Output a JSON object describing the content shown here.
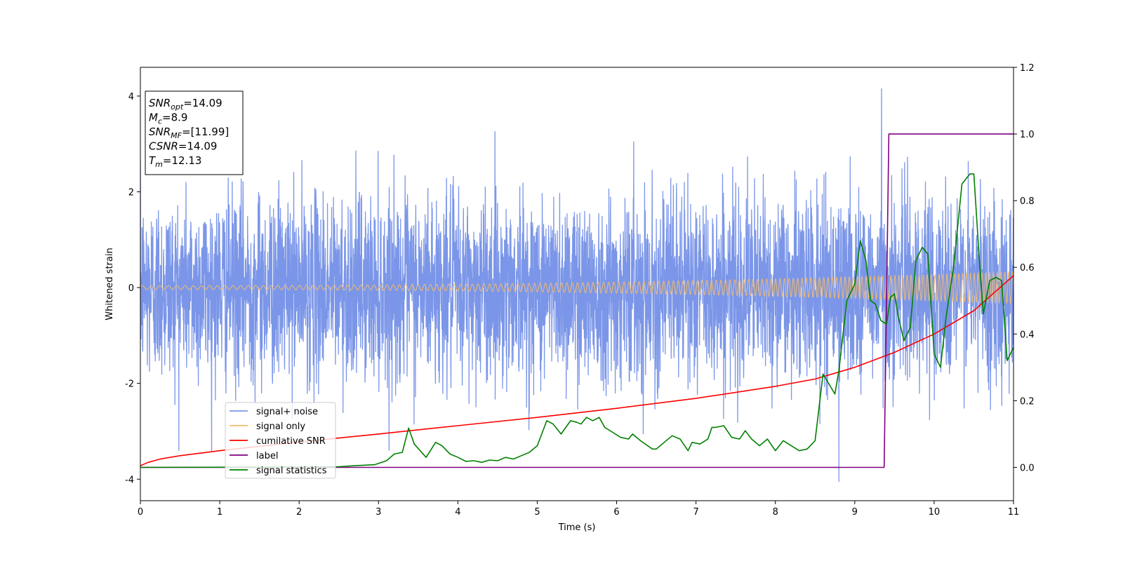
{
  "chart_data": {
    "type": "line",
    "title": "",
    "xlabel": "Time (s)",
    "ylabel": "Whitened strain",
    "xlim": [
      0,
      11
    ],
    "ylim": [
      -4.45,
      4.6
    ],
    "y2lim": [
      -0.1,
      1.2
    ],
    "xticks": [
      0,
      1,
      2,
      3,
      4,
      5,
      6,
      7,
      8,
      9,
      10,
      11
    ],
    "yticks": [
      -4,
      -2,
      0,
      2,
      4
    ],
    "y2ticks": [
      "0.0",
      "0.2",
      "0.4",
      "0.6",
      "0.8",
      "1.0",
      "1.2"
    ],
    "grid": false,
    "legend_position": "lower-left",
    "annotation": {
      "lines": [
        {
          "base": "SNR",
          "sub": "opt",
          "value": "=14.09"
        },
        {
          "base": "M",
          "sub": "c",
          "value": "=8.9"
        },
        {
          "base": "SNR",
          "sub": "MF",
          "value": "=[11.99]"
        },
        {
          "base": "CSNR",
          "sub": "",
          "value": "=14.09"
        },
        {
          "base": "T",
          "sub": "m",
          "value": "=12.13"
        }
      ]
    },
    "series": [
      {
        "name": "signal+ noise",
        "color": "#7b96e8",
        "axis": "left",
        "kind": "noise",
        "std": 1.0,
        "max_value": 4.15,
        "min_value": -4.05
      },
      {
        "name": "signal only",
        "color": "#f5bb6b",
        "axis": "left",
        "kind": "chirp",
        "amplitude_start": 0.04,
        "amplitude_end": 0.33
      },
      {
        "name": "cumilative SNR",
        "color": "#ff0000",
        "axis": "right",
        "x": [
          0,
          0.1,
          0.25,
          0.5,
          1,
          1.5,
          2,
          3,
          4,
          5,
          6,
          7,
          8,
          8.5,
          9,
          9.5,
          10,
          10.5,
          11
        ],
        "y": [
          0.005,
          0.015,
          0.025,
          0.035,
          0.05,
          0.063,
          0.076,
          0.1,
          0.125,
          0.15,
          0.177,
          0.207,
          0.243,
          0.265,
          0.3,
          0.345,
          0.4,
          0.47,
          0.575
        ]
      },
      {
        "name": "label",
        "color": "#800080",
        "axis": "right",
        "x": [
          0,
          9.37,
          9.43,
          11
        ],
        "y": [
          0,
          0,
          1,
          1
        ]
      },
      {
        "name": "signal statistics",
        "color": "#008000",
        "axis": "right",
        "x": [
          0,
          2,
          2.5,
          2.7,
          2.95,
          3.1,
          3.2,
          3.3,
          3.38,
          3.45,
          3.6,
          3.72,
          3.8,
          3.9,
          4.0,
          4.1,
          4.2,
          4.3,
          4.4,
          4.5,
          4.6,
          4.7,
          4.8,
          4.9,
          5.0,
          5.12,
          5.2,
          5.3,
          5.42,
          5.5,
          5.55,
          5.62,
          5.7,
          5.78,
          5.85,
          5.95,
          6.05,
          6.15,
          6.2,
          6.3,
          6.45,
          6.5,
          6.6,
          6.7,
          6.8,
          6.9,
          6.95,
          7.05,
          7.15,
          7.2,
          7.25,
          7.35,
          7.45,
          7.55,
          7.62,
          7.7,
          7.8,
          7.9,
          8.0,
          8.1,
          8.2,
          8.3,
          8.4,
          8.5,
          8.6,
          8.7,
          8.75,
          8.8,
          8.9,
          9.0,
          9.07,
          9.14,
          9.2,
          9.26,
          9.33,
          9.4,
          9.45,
          9.5,
          9.55,
          9.62,
          9.7,
          9.77,
          9.85,
          9.92,
          10.0,
          10.08,
          10.15,
          10.25,
          10.35,
          10.45,
          10.5,
          10.57,
          10.62,
          10.7,
          10.78,
          10.85,
          10.92,
          11.0
        ],
        "y": [
          0,
          0.001,
          0.002,
          0.005,
          0.008,
          0.02,
          0.04,
          0.045,
          0.118,
          0.07,
          0.03,
          0.075,
          0.065,
          0.04,
          0.03,
          0.018,
          0.02,
          0.015,
          0.022,
          0.02,
          0.03,
          0.025,
          0.035,
          0.045,
          0.065,
          0.14,
          0.13,
          0.1,
          0.14,
          0.135,
          0.13,
          0.15,
          0.14,
          0.15,
          0.12,
          0.105,
          0.09,
          0.085,
          0.1,
          0.08,
          0.055,
          0.055,
          0.075,
          0.095,
          0.085,
          0.05,
          0.075,
          0.07,
          0.085,
          0.12,
          0.12,
          0.125,
          0.09,
          0.085,
          0.11,
          0.085,
          0.065,
          0.085,
          0.05,
          0.08,
          0.065,
          0.05,
          0.055,
          0.08,
          0.28,
          0.24,
          0.22,
          0.29,
          0.5,
          0.55,
          0.68,
          0.62,
          0.5,
          0.49,
          0.44,
          0.43,
          0.51,
          0.52,
          0.45,
          0.38,
          0.42,
          0.62,
          0.66,
          0.64,
          0.34,
          0.3,
          0.45,
          0.61,
          0.85,
          0.88,
          0.88,
          0.62,
          0.46,
          0.56,
          0.57,
          0.56,
          0.32,
          0.36
        ]
      }
    ]
  }
}
